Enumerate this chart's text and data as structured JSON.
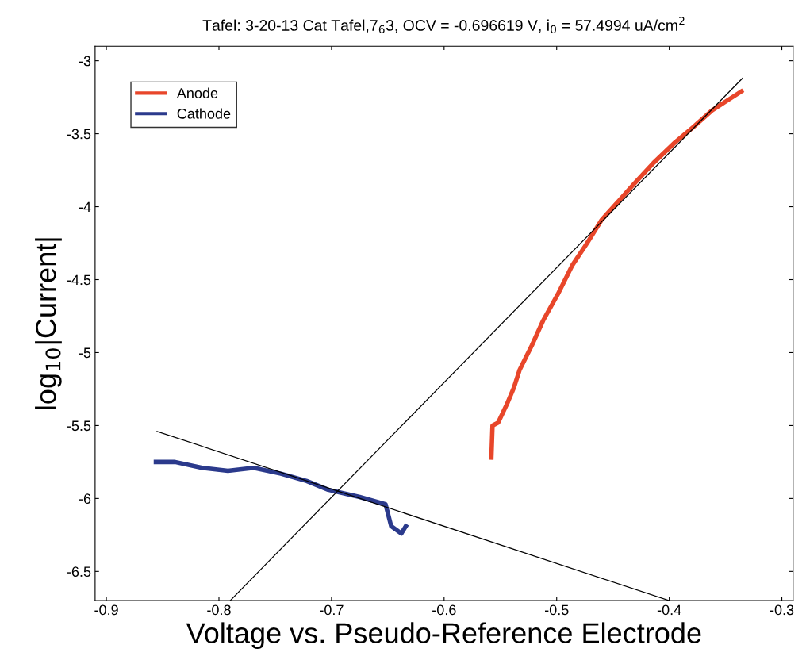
{
  "chart_data": {
    "type": "line",
    "title": "Tafel: 3-20-13 Cat Tafel,7$_{6}$3, OCV = -0.696619 V, i$_{0}$ = 57.4994 uA/cm$^{2}$",
    "xlabel": "Voltage vs. Pseudo-Reference Electrode",
    "ylabel": "log$_{10}$|Current|",
    "xlim": [
      -0.91,
      -0.29
    ],
    "ylim": [
      -6.7,
      -2.9
    ],
    "xticks": [
      -0.9,
      -0.8,
      -0.7,
      -0.6,
      -0.5,
      -0.4,
      -0.3
    ],
    "yticks": [
      -6.5,
      -6,
      -5.5,
      -5,
      -4.5,
      -4,
      -3.5,
      -3
    ],
    "grid": false,
    "legend": "top left",
    "line_style": "solid",
    "marker": "none",
    "series": [
      {
        "name": "Anode",
        "color": "#e8462a",
        "x": [
          -0.558,
          -0.557,
          -0.552,
          -0.544,
          -0.538,
          -0.533,
          -0.522,
          -0.512,
          -0.499,
          -0.486,
          -0.473,
          -0.46,
          -0.446,
          -0.432,
          -0.414,
          -0.395,
          -0.378,
          -0.362,
          -0.348,
          -0.336
        ],
        "values": [
          -5.72,
          -5.5,
          -5.48,
          -5.35,
          -5.24,
          -5.12,
          -4.95,
          -4.78,
          -4.6,
          -4.4,
          -4.25,
          -4.09,
          -3.97,
          -3.85,
          -3.7,
          -3.56,
          -3.45,
          -3.34,
          -3.27,
          -3.21
        ]
      },
      {
        "name": "Cathode",
        "color": "#2b3a8c",
        "x": [
          -0.856,
          -0.839,
          -0.815,
          -0.792,
          -0.769,
          -0.745,
          -0.722,
          -0.703,
          -0.675,
          -0.652,
          -0.647,
          -0.638,
          -0.634
        ],
        "values": [
          -5.75,
          -5.75,
          -5.79,
          -5.81,
          -5.79,
          -5.83,
          -5.88,
          -5.94,
          -5.99,
          -6.04,
          -6.19,
          -6.24,
          -6.19
        ]
      },
      {
        "type": "line",
        "color": "#000000",
        "x": [
          -0.855,
          -0.4
        ],
        "values": [
          -5.54,
          -6.7
        ]
      },
      {
        "type": "line",
        "color": "#000000",
        "x": [
          -0.79,
          -0.335
        ],
        "values": [
          -6.7,
          -3.12
        ]
      }
    ]
  }
}
